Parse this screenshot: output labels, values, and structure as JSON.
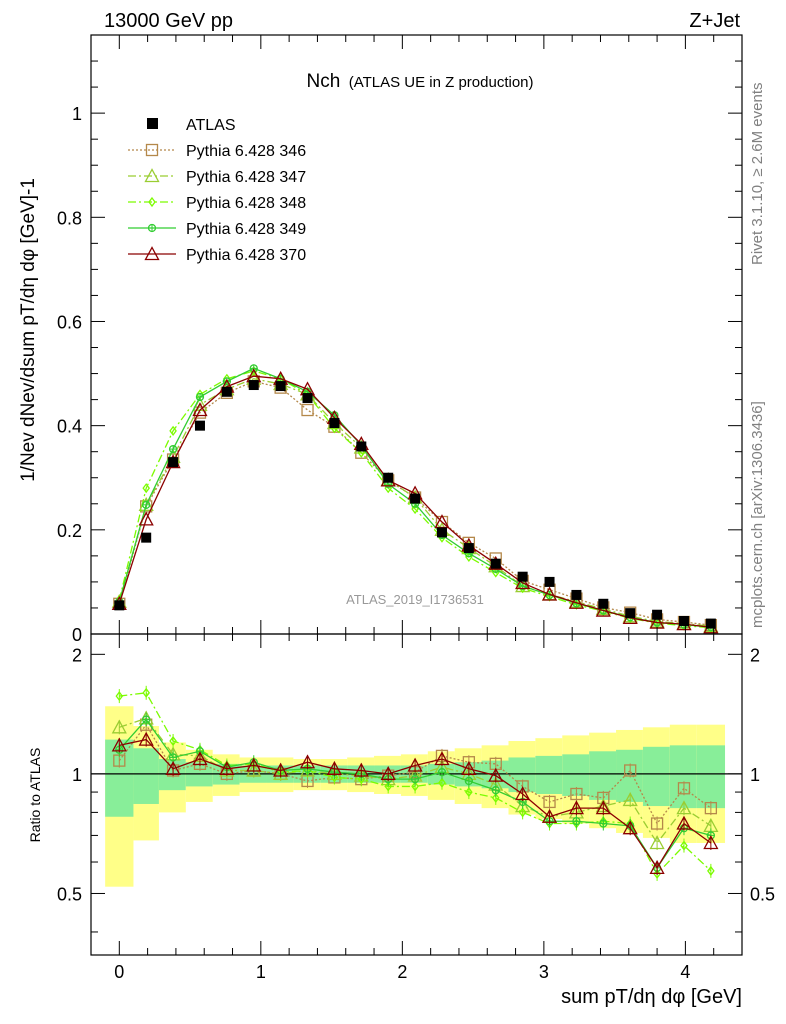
{
  "header": {
    "left_label": "13000 GeV pp",
    "right_label": "Z+Jet",
    "side_label_top": "Rivet 3.1.10, ≥ 2.6M events",
    "side_label_bottom": "mcplots.cern.ch [arXiv:1306.3436]",
    "watermark": "ATLAS_2019_I1736531"
  },
  "chart_data": {
    "type": "line",
    "title": "Nch",
    "subtitle": "(ATLAS UE in Z production)",
    "xlabel": "sum pT/dη dφ [GeV]",
    "ylabel": "1/Nev dNev/dsum pT/dη dφ [GeV]-1",
    "ratio_ylabel": "Ratio to ATLAS",
    "xlim": [
      -0.2,
      4.4
    ],
    "ylim": [
      0,
      1.15
    ],
    "ratio_ylim": [
      0.35,
      2.25
    ],
    "x_ticks": [
      "0",
      "1",
      "2",
      "3",
      "4"
    ],
    "y_ticks": [
      "0",
      "0.2",
      "0.4",
      "0.6",
      "0.8",
      "1"
    ],
    "ratio_ticks": [
      "0.5",
      "1",
      "2"
    ],
    "x": [
      0.0,
      0.19,
      0.38,
      0.57,
      0.76,
      0.95,
      1.14,
      1.33,
      1.52,
      1.71,
      1.9,
      2.09,
      2.28,
      2.47,
      2.66,
      2.85,
      3.04,
      3.23,
      3.42,
      3.61,
      3.8,
      3.99,
      4.18
    ],
    "bin_edges": [
      -0.1,
      0.1,
      0.28,
      0.47,
      0.66,
      0.85,
      1.04,
      1.23,
      1.42,
      1.61,
      1.8,
      1.99,
      2.18,
      2.37,
      2.56,
      2.75,
      2.94,
      3.13,
      3.32,
      3.51,
      3.7,
      3.89,
      4.08,
      4.28
    ],
    "data": {
      "name": "ATLAS",
      "values": [
        0.055,
        0.185,
        0.33,
        0.4,
        0.465,
        0.478,
        0.476,
        0.453,
        0.405,
        0.36,
        0.3,
        0.26,
        0.195,
        0.165,
        0.135,
        0.11,
        0.1,
        0.075,
        0.058,
        0.04,
        0.037,
        0.025,
        0.02
      ],
      "band_green": [
        0.22,
        0.16,
        0.09,
        0.07,
        0.06,
        0.05,
        0.05,
        0.05,
        0.05,
        0.05,
        0.05,
        0.05,
        0.06,
        0.07,
        0.08,
        0.1,
        0.11,
        0.12,
        0.14,
        0.15,
        0.17,
        0.18,
        0.18
      ],
      "band_yellow": [
        0.48,
        0.32,
        0.2,
        0.15,
        0.12,
        0.1,
        0.1,
        0.09,
        0.09,
        0.1,
        0.11,
        0.12,
        0.14,
        0.16,
        0.18,
        0.21,
        0.23,
        0.25,
        0.27,
        0.29,
        0.31,
        0.33,
        0.33
      ]
    },
    "series": [
      {
        "name": "Pythia 6.428 346",
        "color": "#b4884a",
        "marker": "square",
        "dash": "2,2",
        "values": [
          0.058,
          0.245,
          0.335,
          0.425,
          0.463,
          0.485,
          0.473,
          0.43,
          0.398,
          0.348,
          0.295,
          0.262,
          0.215,
          0.175,
          0.145,
          0.102,
          0.085,
          0.068,
          0.051,
          0.041,
          0.028,
          0.023,
          0.017
        ],
        "ratio": [
          1.08,
          1.33,
          1.02,
          1.06,
          1.0,
          1.02,
          1.0,
          0.96,
          0.98,
          0.97,
          0.99,
          1.01,
          1.11,
          1.07,
          1.06,
          0.93,
          0.85,
          0.89,
          0.87,
          1.02,
          0.75,
          0.92,
          0.82
        ]
      },
      {
        "name": "Pythia 6.428 347",
        "color": "#9acd32",
        "marker": "triangle",
        "dash": "8,3,2,3",
        "values": [
          0.062,
          0.248,
          0.34,
          0.44,
          0.47,
          0.49,
          0.48,
          0.46,
          0.405,
          0.358,
          0.296,
          0.262,
          0.2,
          0.165,
          0.13,
          0.092,
          0.076,
          0.062,
          0.048,
          0.034,
          0.024,
          0.02,
          0.015
        ],
        "ratio": [
          1.31,
          1.38,
          1.12,
          1.11,
          1.02,
          1.02,
          1.0,
          1.02,
          1.0,
          0.99,
          0.97,
          0.99,
          1.04,
          1.0,
          0.94,
          0.83,
          0.78,
          0.8,
          0.83,
          0.86,
          0.67,
          0.82,
          0.74
        ]
      },
      {
        "name": "Pythia 6.428 348",
        "color": "#7cfc00",
        "marker": "diamond",
        "dash": "8,3,2,3",
        "values": [
          0.065,
          0.28,
          0.39,
          0.46,
          0.49,
          0.505,
          0.49,
          0.46,
          0.395,
          0.348,
          0.28,
          0.24,
          0.185,
          0.148,
          0.118,
          0.088,
          0.072,
          0.056,
          0.044,
          0.03,
          0.021,
          0.016,
          0.012
        ],
        "ratio": [
          1.57,
          1.6,
          1.21,
          1.15,
          1.05,
          1.06,
          1.01,
          1.02,
          0.98,
          0.97,
          0.93,
          0.93,
          0.95,
          0.9,
          0.87,
          0.8,
          0.75,
          0.75,
          0.76,
          0.75,
          0.56,
          0.66,
          0.57
        ]
      },
      {
        "name": "Pythia 6.428 349",
        "color": "#32cd32",
        "marker": "circle",
        "dash": "",
        "values": [
          0.062,
          0.248,
          0.355,
          0.455,
          0.485,
          0.51,
          0.49,
          0.465,
          0.42,
          0.362,
          0.288,
          0.25,
          0.19,
          0.155,
          0.125,
          0.092,
          0.075,
          0.059,
          0.045,
          0.032,
          0.022,
          0.018,
          0.013
        ],
        "ratio": [
          1.15,
          1.37,
          1.1,
          1.14,
          1.04,
          1.07,
          1.02,
          1.03,
          1.01,
          1.0,
          0.97,
          0.97,
          1.01,
          0.96,
          0.91,
          0.85,
          0.76,
          0.76,
          0.75,
          0.74,
          0.58,
          0.73,
          0.7
        ]
      },
      {
        "name": "Pythia 6.428 370",
        "color": "#8b0000",
        "marker": "triangle",
        "dash": "",
        "values": [
          0.058,
          0.22,
          0.33,
          0.43,
          0.475,
          0.495,
          0.49,
          0.47,
          0.415,
          0.365,
          0.295,
          0.27,
          0.215,
          0.17,
          0.135,
          0.098,
          0.076,
          0.06,
          0.045,
          0.031,
          0.022,
          0.019,
          0.013
        ],
        "ratio": [
          1.18,
          1.22,
          1.03,
          1.09,
          1.03,
          1.05,
          1.02,
          1.07,
          1.03,
          1.02,
          1.0,
          1.05,
          1.09,
          1.03,
          0.99,
          0.89,
          0.78,
          0.82,
          0.82,
          0.73,
          0.58,
          0.75,
          0.67
        ]
      }
    ]
  }
}
